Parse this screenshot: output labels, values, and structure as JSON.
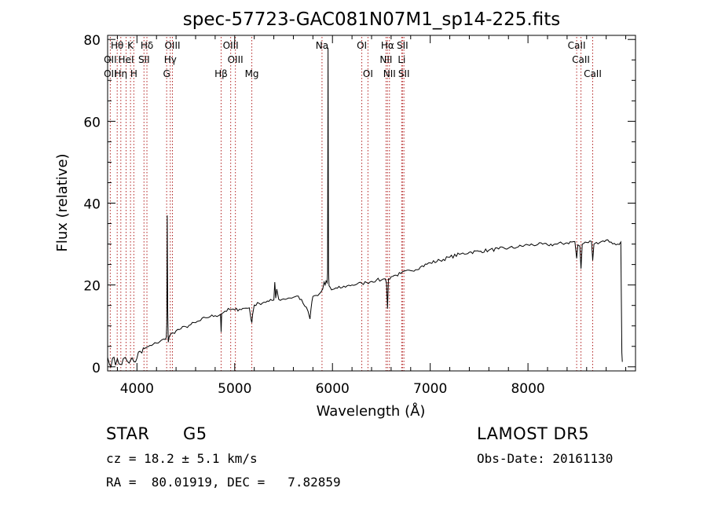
{
  "chart_data": {
    "type": "line",
    "title": "spec-57723-GAC081N07M1_sp14-225.fits",
    "xlabel": "Wavelength (Å)",
    "ylabel": "Flux (relative)",
    "xlim": [
      3700,
      9100
    ],
    "ylim": [
      -1,
      81
    ],
    "xticks": [
      4000,
      5000,
      6000,
      7000,
      8000
    ],
    "yticks": [
      0,
      20,
      40,
      60,
      80
    ],
    "grid": false,
    "legend": "none",
    "series": [
      {
        "color": "#000000",
        "x": [
          3700,
          3720,
          3750,
          3780,
          3800,
          3830,
          3860,
          3900,
          3920,
          3950,
          3970,
          4000,
          4030,
          4050,
          4080,
          4100,
          4150,
          4200,
          4250,
          4290,
          4300,
          4305,
          4310,
          4315,
          4320,
          4330,
          4340,
          4370,
          4400,
          4450,
          4500,
          4550,
          4600,
          4650,
          4700,
          4750,
          4800,
          4855,
          4861,
          4867,
          4900,
          4950,
          5000,
          5050,
          5100,
          5150,
          5168,
          5175,
          5183,
          5200,
          5250,
          5300,
          5350,
          5400,
          5410,
          5420,
          5430,
          5450,
          5500,
          5550,
          5600,
          5650,
          5700,
          5750,
          5770,
          5780,
          5790,
          5800,
          5850,
          5880,
          5900,
          5915,
          5925,
          5935,
          5945,
          5950,
          5955,
          5960,
          5965,
          5975,
          5990,
          6000,
          6050,
          6100,
          6150,
          6200,
          6250,
          6300,
          6350,
          6400,
          6450,
          6500,
          6540,
          6553,
          6563,
          6573,
          6600,
          6650,
          6700,
          6800,
          6900,
          7000,
          7100,
          7200,
          7300,
          7400,
          7500,
          7600,
          7700,
          7800,
          7900,
          8000,
          8100,
          8200,
          8300,
          8400,
          8480,
          8498,
          8510,
          8530,
          8542,
          8555,
          8600,
          8650,
          8662,
          8675,
          8700,
          8750,
          8800,
          8850,
          8900,
          8950,
          8960,
          8965
        ],
        "y": [
          2.3,
          0.5,
          2.1,
          0.4,
          2.0,
          0.6,
          2.0,
          1.4,
          0.9,
          2.2,
          1.2,
          2.1,
          3.8,
          3.4,
          4.5,
          4.8,
          5.2,
          5.8,
          6.5,
          6.7,
          7.2,
          10.5,
          37,
          14,
          6.0,
          7.4,
          7.8,
          8.3,
          8.8,
          9.3,
          9.8,
          10.3,
          10.8,
          11.3,
          12.0,
          12.3,
          12.5,
          12.8,
          8.5,
          13.0,
          13.6,
          14.0,
          13.9,
          14.1,
          14.3,
          14.4,
          11.4,
          10.8,
          12.8,
          15.1,
          15.5,
          15.8,
          16.0,
          16.3,
          20.7,
          16.8,
          19.0,
          16.5,
          16.6,
          16.8,
          17.0,
          17.3,
          15.5,
          13.6,
          11.7,
          14.0,
          16.0,
          17.2,
          17.4,
          18.2,
          19.0,
          20.7,
          20.0,
          21.0,
          20.5,
          23.0,
          78.0,
          23.0,
          19.8,
          19.5,
          18.8,
          18.9,
          19.2,
          19.4,
          19.8,
          20.0,
          20.2,
          20.4,
          20.6,
          20.9,
          21.2,
          21.2,
          21.5,
          20.5,
          14.2,
          21.5,
          22.0,
          22.4,
          22.8,
          23.5,
          24.4,
          25.4,
          26.0,
          26.8,
          27.5,
          28.0,
          28.2,
          28.5,
          28.8,
          29.0,
          29.3,
          29.8,
          29.9,
          29.8,
          30.0,
          30.3,
          30.6,
          26.5,
          29.8,
          29.5,
          24.0,
          30.0,
          30.4,
          30.6,
          26.0,
          30.0,
          30.4,
          30.6,
          31.0,
          30.5,
          29.8,
          30.5,
          3.5,
          1.2
        ]
      }
    ],
    "line_labels": [
      {
        "text": "Hθ",
        "wave": 3798,
        "row": 1
      },
      {
        "text": "K",
        "wave": 3934,
        "row": 1
      },
      {
        "text": "Hδ",
        "wave": 4102,
        "row": 1
      },
      {
        "text": "OIII",
        "wave": 4363,
        "row": 1
      },
      {
        "text": "OIII",
        "wave": 4959,
        "row": 1
      },
      {
        "text": "Na",
        "wave": 5893,
        "row": 1
      },
      {
        "text": "OI",
        "wave": 6300,
        "row": 1
      },
      {
        "text": "Hα",
        "wave": 6563,
        "row": 1
      },
      {
        "text": "SII",
        "wave": 6716,
        "row": 1
      },
      {
        "text": "CaII",
        "wave": 8498,
        "row": 1
      },
      {
        "text": "OII",
        "wave": 3727,
        "row": 2
      },
      {
        "text": "HeI",
        "wave": 3889,
        "row": 2
      },
      {
        "text": "SII",
        "wave": 4072,
        "row": 2
      },
      {
        "text": "Hγ",
        "wave": 4341,
        "row": 2
      },
      {
        "text": "OIII",
        "wave": 5007,
        "row": 2
      },
      {
        "text": "NII",
        "wave": 6548,
        "row": 2
      },
      {
        "text": "Li",
        "wave": 6708,
        "row": 2
      },
      {
        "text": "CaII",
        "wave": 8542,
        "row": 2
      },
      {
        "text": "OII",
        "wave": 3727,
        "row": 3
      },
      {
        "text": "Hη",
        "wave": 3835,
        "row": 3
      },
      {
        "text": "H",
        "wave": 3968,
        "row": 3
      },
      {
        "text": "G",
        "wave": 4304,
        "row": 3
      },
      {
        "text": "Hβ",
        "wave": 4861,
        "row": 3
      },
      {
        "text": "Mg",
        "wave": 5175,
        "row": 3
      },
      {
        "text": "OI",
        "wave": 6363,
        "row": 3
      },
      {
        "text": "NII",
        "wave": 6583,
        "row": 3
      },
      {
        "text": "SII",
        "wave": 6731,
        "row": 3
      },
      {
        "text": "CaII",
        "wave": 8662,
        "row": 3
      }
    ],
    "line_positions": [
      3727,
      3798,
      3835,
      3889,
      3934,
      3968,
      4072,
      4102,
      4304,
      4341,
      4363,
      4861,
      4959,
      5007,
      5175,
      5893,
      6300,
      6363,
      6548,
      6563,
      6583,
      6708,
      6716,
      6731,
      8498,
      8542,
      8662
    ]
  },
  "info": {
    "class_label": "STAR",
    "subclass": "G5",
    "survey": "LAMOST DR5",
    "cz": "cz = 18.2 ± 5.1 km/s",
    "obs_date": "Obs-Date: 20161130",
    "coords": "RA =  80.01919, DEC =   7.82859"
  },
  "colors": {
    "spectrum": "#000000",
    "line_markers": "#b22222",
    "axes": "#000000"
  }
}
